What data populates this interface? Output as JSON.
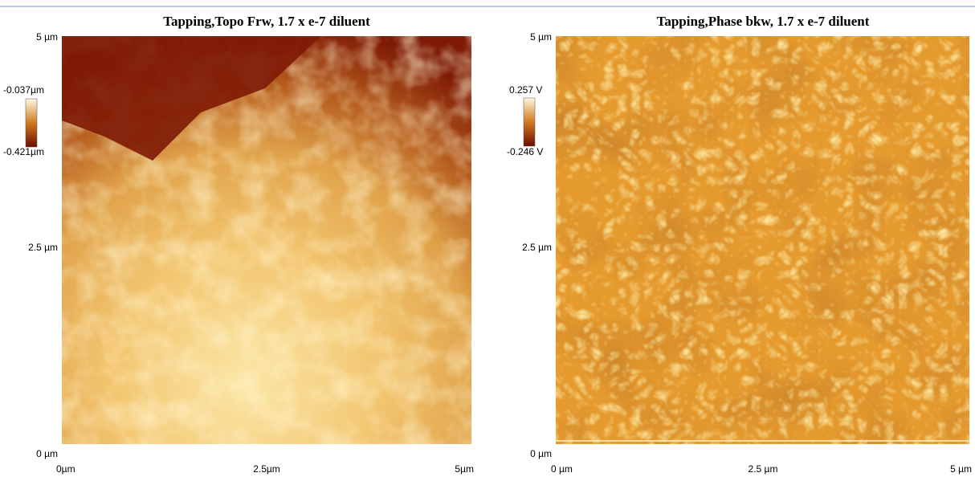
{
  "panels": [
    {
      "title": "Tapping,Topo Frw, 1.7 x e-7 diluent",
      "y_labels": [
        "5 µm",
        "2.5 µm",
        "0 µm"
      ],
      "x_labels": [
        "0µm",
        "2.5µm",
        "5µm"
      ],
      "colorbar": {
        "max": "-0.037µm",
        "min": "-0.421µm"
      }
    },
    {
      "title": "Tapping,Phase bkw, 1.7 x e-7 diluent",
      "y_labels": [
        "5 µm",
        "2.5 µm",
        "0 µm"
      ],
      "x_labels": [
        "0 µm",
        "2.5 µm",
        "5 µm"
      ],
      "colorbar": {
        "max": "0.257 V",
        "min": "-0.246 V"
      }
    }
  ]
}
